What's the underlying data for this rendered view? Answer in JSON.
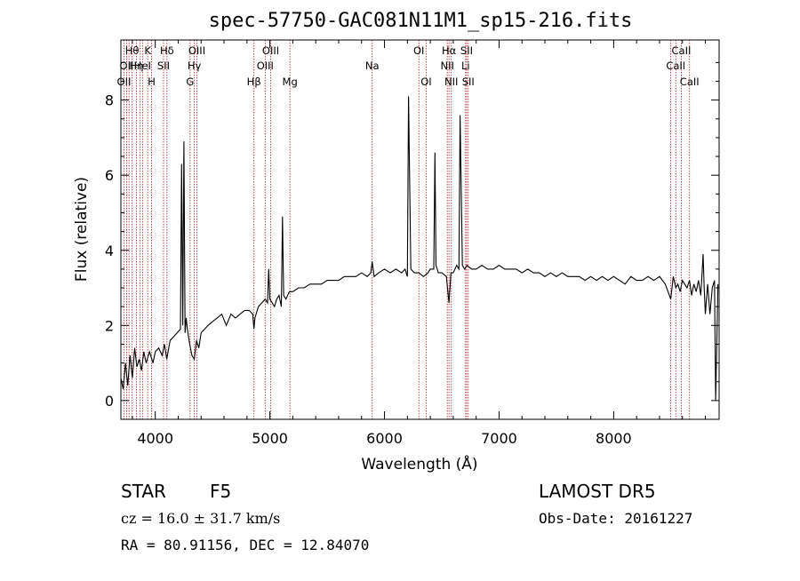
{
  "chart_data": {
    "type": "line",
    "title": "spec-57750-GAC081N11M1_sp15-216.fits",
    "xlabel": "Wavelength (Å)",
    "ylabel": "Flux (relative)",
    "xlim": [
      3700,
      8920
    ],
    "ylim": [
      -0.5,
      9.6
    ],
    "grid": false,
    "x_ticks": [
      4000,
      5000,
      6000,
      7000,
      8000
    ],
    "y_ticks": [
      0,
      2,
      4,
      6,
      8
    ],
    "series": [
      {
        "x": [
          3700,
          3720,
          3740,
          3760,
          3780,
          3800,
          3820,
          3840,
          3860,
          3880,
          3900,
          3920,
          3950,
          3980,
          4000,
          4030,
          4060,
          4080,
          4100,
          4130,
          4160,
          4190,
          4220,
          4230,
          4240,
          4250,
          4260,
          4270,
          4280,
          4300,
          4320,
          4340,
          4360,
          4380,
          4400,
          4430,
          4460,
          4500,
          4540,
          4580,
          4620,
          4660,
          4700,
          4740,
          4780,
          4820,
          4850,
          4861,
          4870,
          4900,
          4930,
          4960,
          4980,
          4990,
          5000,
          5020,
          5040,
          5060,
          5080,
          5100,
          5110,
          5120,
          5140,
          5170,
          5200,
          5250,
          5300,
          5350,
          5400,
          5450,
          5500,
          5550,
          5600,
          5650,
          5700,
          5750,
          5800,
          5850,
          5880,
          5893,
          5910,
          5950,
          6000,
          6050,
          6100,
          6150,
          6180,
          6200,
          6210,
          6230,
          6260,
          6300,
          6340,
          6380,
          6400,
          6430,
          6440,
          6450,
          6470,
          6500,
          6540,
          6563,
          6580,
          6600,
          6630,
          6650,
          6660,
          6680,
          6700,
          6720,
          6760,
          6800,
          6850,
          6900,
          6950,
          7000,
          7050,
          7100,
          7150,
          7200,
          7250,
          7300,
          7350,
          7400,
          7450,
          7500,
          7550,
          7600,
          7650,
          7700,
          7750,
          7800,
          7850,
          7900,
          7950,
          8000,
          8050,
          8100,
          8150,
          8200,
          8250,
          8300,
          8350,
          8400,
          8450,
          8498,
          8520,
          8542,
          8560,
          8580,
          8600,
          8620,
          8640,
          8662,
          8680,
          8700,
          8720,
          8740,
          8760,
          8780,
          8790,
          8800,
          8820,
          8840,
          8860,
          8880,
          8890,
          8900,
          8910
        ],
        "values": [
          0.6,
          0.3,
          1.0,
          0.4,
          1.2,
          0.6,
          1.4,
          0.9,
          1.1,
          0.8,
          1.3,
          1.0,
          1.3,
          1.0,
          1.3,
          1.4,
          1.2,
          1.5,
          1.1,
          1.6,
          1.7,
          1.8,
          1.9,
          6.3,
          2.0,
          6.9,
          1.8,
          2.2,
          1.9,
          1.5,
          1.2,
          1.1,
          1.6,
          1.4,
          1.8,
          1.9,
          2.0,
          2.1,
          2.2,
          2.3,
          2.0,
          2.3,
          2.2,
          2.3,
          2.4,
          2.4,
          2.3,
          1.9,
          2.2,
          2.5,
          2.6,
          2.7,
          2.6,
          3.5,
          2.7,
          2.6,
          2.5,
          2.7,
          2.8,
          2.5,
          4.9,
          2.8,
          2.7,
          2.9,
          2.9,
          3.0,
          3.0,
          3.1,
          3.1,
          3.1,
          3.2,
          3.2,
          3.2,
          3.3,
          3.3,
          3.3,
          3.4,
          3.3,
          3.4,
          3.7,
          3.3,
          3.4,
          3.5,
          3.4,
          3.5,
          3.4,
          3.5,
          3.3,
          8.1,
          3.5,
          3.4,
          3.4,
          3.3,
          3.4,
          3.5,
          3.5,
          6.6,
          3.6,
          3.4,
          3.4,
          3.3,
          2.6,
          3.4,
          3.4,
          3.6,
          3.5,
          7.6,
          3.6,
          3.5,
          3.6,
          3.5,
          3.5,
          3.6,
          3.5,
          3.5,
          3.6,
          3.5,
          3.5,
          3.5,
          3.4,
          3.5,
          3.4,
          3.4,
          3.3,
          3.4,
          3.3,
          3.4,
          3.3,
          3.3,
          3.3,
          3.2,
          3.3,
          3.2,
          3.3,
          3.2,
          3.3,
          3.2,
          3.1,
          3.3,
          3.2,
          3.2,
          3.3,
          3.2,
          3.3,
          3.1,
          2.7,
          3.3,
          3.0,
          3.1,
          2.9,
          3.2,
          3.1,
          3.0,
          3.2,
          2.8,
          3.1,
          2.9,
          3.2,
          2.8,
          3.9,
          3.0,
          2.3,
          3.1,
          2.3,
          3.0,
          3.2,
          0.0,
          1.5,
          3.1
        ]
      }
    ],
    "lines": [
      {
        "x": 3727,
        "label": "OII",
        "row": 3
      },
      {
        "x": 3750,
        "label": "OII",
        "row": 2
      },
      {
        "x": 3771,
        "label": "",
        "row": 0
      },
      {
        "x": 3798,
        "label": "Hθ",
        "row": 1
      },
      {
        "x": 3835,
        "label": "Hη",
        "row": 2
      },
      {
        "x": 3869,
        "label": "",
        "row": 0
      },
      {
        "x": 3889,
        "label": "HeI",
        "row": 2
      },
      {
        "x": 3934,
        "label": "K",
        "row": 1
      },
      {
        "x": 3968,
        "label": "H",
        "row": 3
      },
      {
        "x": 4072,
        "label": "SII",
        "row": 2
      },
      {
        "x": 4102,
        "label": "Hδ",
        "row": 1
      },
      {
        "x": 4304,
        "label": "G",
        "row": 3
      },
      {
        "x": 4341,
        "label": "Hγ",
        "row": 2
      },
      {
        "x": 4363,
        "label": "OIII",
        "row": 1
      },
      {
        "x": 4861,
        "label": "Hβ",
        "row": 3
      },
      {
        "x": 4959,
        "label": "OIII",
        "row": 2
      },
      {
        "x": 5007,
        "label": "OIII",
        "row": 1
      },
      {
        "x": 5175,
        "label": "Mg",
        "row": 3
      },
      {
        "x": 5893,
        "label": "Na",
        "row": 2
      },
      {
        "x": 6300,
        "label": "OI",
        "row": 1
      },
      {
        "x": 6364,
        "label": "OI",
        "row": 3
      },
      {
        "x": 6548,
        "label": "NII",
        "row": 2
      },
      {
        "x": 6563,
        "label": "Hα",
        "row": 1
      },
      {
        "x": 6583,
        "label": "NII",
        "row": 3
      },
      {
        "x": 6708,
        "label": "Li",
        "row": 2
      },
      {
        "x": 6717,
        "label": "SII",
        "row": 1
      },
      {
        "x": 6731,
        "label": "SII",
        "row": 3
      },
      {
        "x": 8498,
        "label": "",
        "row": 0
      },
      {
        "x": 8542,
        "label": "CaII",
        "row": 2
      },
      {
        "x": 8590,
        "label": "CaII",
        "row": 1
      },
      {
        "x": 8662,
        "label": "CaII",
        "row": 3
      }
    ],
    "line_color": "#b22222"
  },
  "info": {
    "class": "STAR",
    "subclass": "F5",
    "survey": "LAMOST DR5",
    "cz": "cz = 16.0 ± 31.7 km/s",
    "obs_date": "Obs-Date: 20161227",
    "radec": "RA =  80.91156, DEC =  12.84070"
  }
}
